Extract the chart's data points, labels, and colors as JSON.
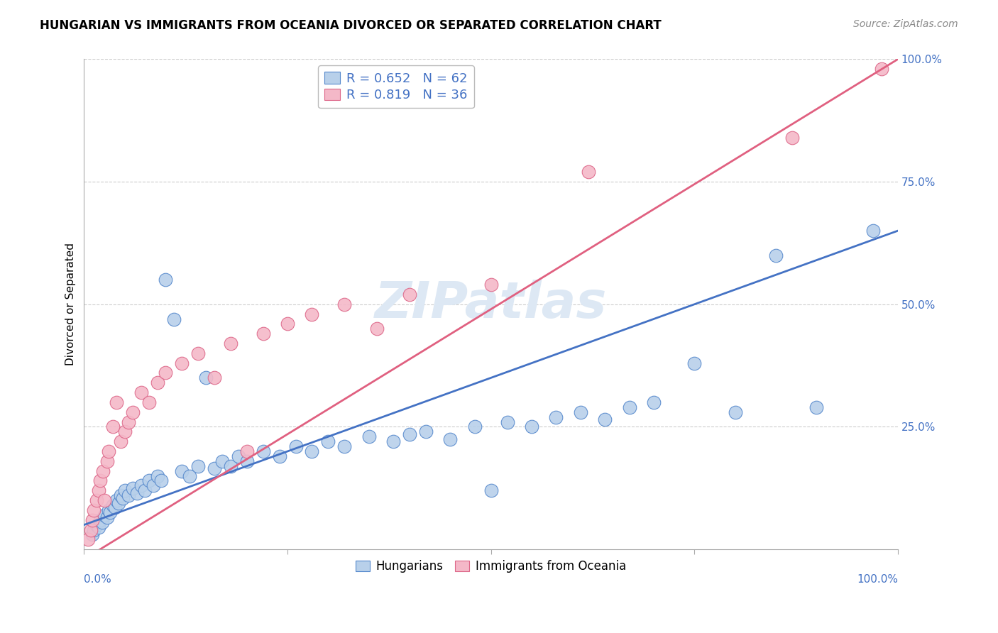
{
  "title": "HUNGARIAN VS IMMIGRANTS FROM OCEANIA DIVORCED OR SEPARATED CORRELATION CHART",
  "source": "Source: ZipAtlas.com",
  "ylabel": "Divorced or Separated",
  "legend_blue_label": "R = 0.652   N = 62",
  "legend_pink_label": "R = 0.819   N = 36",
  "legend_bottom_blue": "Hungarians",
  "legend_bottom_pink": "Immigrants from Oceania",
  "blue_fill_color": "#b8d0ea",
  "pink_fill_color": "#f4b8c8",
  "blue_edge_color": "#5588cc",
  "pink_edge_color": "#dd6688",
  "blue_line_color": "#4472c4",
  "pink_line_color": "#e06080",
  "tick_color": "#4472c4",
  "watermark_color": "#dde8f4",
  "background_color": "#ffffff",
  "grid_color": "#cccccc",
  "blue_scatter_x": [
    1.0,
    1.2,
    1.5,
    1.8,
    2.0,
    2.2,
    2.5,
    2.8,
    3.0,
    3.2,
    3.5,
    3.8,
    4.0,
    4.2,
    4.5,
    4.8,
    5.0,
    5.5,
    6.0,
    6.5,
    7.0,
    7.5,
    8.0,
    8.5,
    9.0,
    9.5,
    10.0,
    11.0,
    12.0,
    13.0,
    14.0,
    15.0,
    16.0,
    17.0,
    18.0,
    19.0,
    20.0,
    22.0,
    24.0,
    26.0,
    28.0,
    30.0,
    32.0,
    35.0,
    38.0,
    40.0,
    42.0,
    45.0,
    48.0,
    50.0,
    52.0,
    55.0,
    58.0,
    61.0,
    64.0,
    67.0,
    70.0,
    75.0,
    80.0,
    85.0,
    90.0,
    97.0
  ],
  "blue_scatter_y": [
    3.0,
    4.0,
    5.0,
    4.5,
    6.0,
    5.5,
    7.0,
    6.5,
    8.0,
    7.5,
    9.0,
    8.5,
    10.0,
    9.5,
    11.0,
    10.5,
    12.0,
    11.0,
    12.5,
    11.5,
    13.0,
    12.0,
    14.0,
    13.0,
    15.0,
    14.0,
    55.0,
    47.0,
    16.0,
    15.0,
    17.0,
    35.0,
    16.5,
    18.0,
    17.0,
    19.0,
    18.0,
    20.0,
    19.0,
    21.0,
    20.0,
    22.0,
    21.0,
    23.0,
    22.0,
    23.5,
    24.0,
    22.5,
    25.0,
    12.0,
    26.0,
    25.0,
    27.0,
    28.0,
    26.5,
    29.0,
    30.0,
    38.0,
    28.0,
    60.0,
    29.0,
    65.0
  ],
  "pink_scatter_x": [
    0.5,
    0.8,
    1.0,
    1.2,
    1.5,
    1.8,
    2.0,
    2.3,
    2.5,
    2.8,
    3.0,
    3.5,
    4.0,
    4.5,
    5.0,
    5.5,
    6.0,
    7.0,
    8.0,
    9.0,
    10.0,
    12.0,
    14.0,
    16.0,
    18.0,
    20.0,
    22.0,
    25.0,
    28.0,
    32.0,
    36.0,
    40.0,
    50.0,
    62.0,
    87.0,
    98.0
  ],
  "pink_scatter_y": [
    2.0,
    4.0,
    6.0,
    8.0,
    10.0,
    12.0,
    14.0,
    16.0,
    10.0,
    18.0,
    20.0,
    25.0,
    30.0,
    22.0,
    24.0,
    26.0,
    28.0,
    32.0,
    30.0,
    34.0,
    36.0,
    38.0,
    40.0,
    35.0,
    42.0,
    20.0,
    44.0,
    46.0,
    48.0,
    50.0,
    45.0,
    52.0,
    54.0,
    77.0,
    84.0,
    98.0
  ],
  "blue_line_x0": 0,
  "blue_line_x1": 100,
  "blue_line_y0": 5.0,
  "blue_line_y1": 65.0,
  "pink_line_x0": 0,
  "pink_line_x1": 100,
  "pink_line_y0": -2.0,
  "pink_line_y1": 100.0,
  "xlim": [
    0,
    100
  ],
  "ylim": [
    0,
    100
  ],
  "title_fontsize": 12,
  "source_fontsize": 10,
  "legend_fontsize": 13,
  "axis_label_fontsize": 11,
  "tick_fontsize": 11
}
